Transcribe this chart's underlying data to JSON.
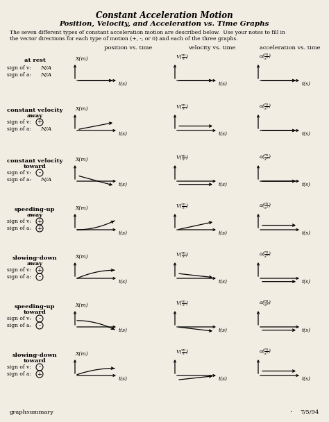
{
  "title_line1": "Constant Acceleration Motion",
  "title_line2": "Position, Velocity, and Acceleration vs. Time Graphs",
  "description1": "The seven different types of constant acceleration motion are described below.  Use your notes to fill in",
  "description2": "the vector directions for each type of motion (+, -, or 0) and each of the three graphs.",
  "col_headers": [
    "position vs. time",
    "velocity vs. time",
    "acceleration vs. time"
  ],
  "rows": [
    {
      "label1": "at rest",
      "label2": "",
      "sign_v": "N/A",
      "sign_a": "N/A",
      "pos": "flat_mid",
      "vel": "flat_mid",
      "acc": "flat_mid"
    },
    {
      "label1": "constant velocity",
      "label2": "away",
      "sign_v": "+",
      "sign_a": "N/A",
      "pos": "line_up",
      "vel": "flat_pos",
      "acc": "flat_mid"
    },
    {
      "label1": "constant velocity",
      "label2": "toward",
      "sign_v": "-",
      "sign_a": "N/A",
      "pos": "line_down",
      "vel": "flat_neg",
      "acc": "flat_mid"
    },
    {
      "label1": "speeding-up",
      "label2": "away",
      "sign_v": "+",
      "sign_a": "+",
      "pos": "curve_up",
      "vel": "line_up_from0",
      "acc": "flat_pos"
    },
    {
      "label1": "slowing-down",
      "label2": "away",
      "sign_v": "+",
      "sign_a": "-",
      "pos": "curve_up_slow",
      "vel": "line_down_to0",
      "acc": "flat_neg"
    },
    {
      "label1": "speeding-up",
      "label2": "toward",
      "sign_v": "-",
      "sign_a": "-",
      "pos": "curve_down",
      "vel": "line_down_from0",
      "acc": "flat_neg"
    },
    {
      "label1": "slowing-down",
      "label2": "toward",
      "sign_v": "-",
      "sign_a": "+",
      "pos": "curve_down_slow",
      "vel": "line_up_to0",
      "acc": "flat_pos"
    }
  ],
  "bg_color": "#f2ede3",
  "footer_left": "graphsummary",
  "footer_right": "7/5/94"
}
